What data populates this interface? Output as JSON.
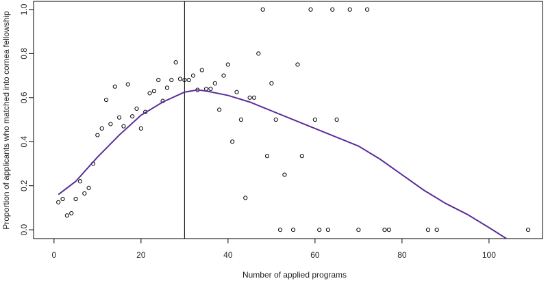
{
  "chart_data": {
    "type": "scatter",
    "xlabel": "Number of applied programs",
    "ylabel": "Proportion of applicants who matched into cornea fellowship",
    "xlim": [
      -4.7,
      112.3
    ],
    "ylim": [
      -0.04,
      1.037
    ],
    "xticks": [
      0,
      20,
      40,
      60,
      80,
      100
    ],
    "yticks": [
      {
        "value": 0,
        "label": "0.0"
      },
      {
        "value": 0.2,
        "label": "0.2"
      },
      {
        "value": 0.4,
        "label": "0.4"
      },
      {
        "value": 0.6,
        "label": "0.6"
      },
      {
        "value": 0.8,
        "label": "0.8"
      },
      {
        "value": 1,
        "label": "1.0"
      }
    ],
    "vline": 30,
    "series": [
      {
        "kind": "points",
        "color": "#000000",
        "x": [
          1,
          2,
          3,
          4,
          5,
          6,
          7,
          8,
          9,
          10,
          11,
          12,
          13,
          14,
          15,
          16,
          17,
          18,
          19,
          20,
          21,
          22,
          23,
          24,
          25,
          26,
          27,
          28,
          29,
          30,
          31,
          32,
          33,
          34,
          35,
          36,
          37,
          38,
          39,
          40,
          41,
          42,
          43,
          44,
          45,
          46,
          47,
          48,
          49,
          50,
          51,
          52,
          53,
          55,
          56,
          57,
          59,
          60,
          61,
          63,
          64,
          65,
          68,
          70,
          72,
          76,
          77,
          86,
          88,
          109
        ],
        "values": [
          0.125,
          0.14,
          0.065,
          0.075,
          0.14,
          0.22,
          0.165,
          0.19,
          0.3,
          0.43,
          0.46,
          0.59,
          0.48,
          0.65,
          0.51,
          0.47,
          0.66,
          0.515,
          0.55,
          0.46,
          0.535,
          0.62,
          0.63,
          0.68,
          0.585,
          0.645,
          0.68,
          0.76,
          0.685,
          0.68,
          0.68,
          0.7,
          0.635,
          0.725,
          0.64,
          0.64,
          0.665,
          0.545,
          0.7,
          0.75,
          0.4,
          0.625,
          0.5,
          0.145,
          0.6,
          0.6,
          0.8,
          1,
          0.335,
          0.665,
          0.5,
          0,
          0.25,
          0,
          0.75,
          0.335,
          1,
          0.5,
          0,
          0,
          1,
          0.5,
          1,
          0,
          1,
          0,
          0,
          0,
          0,
          0
        ]
      },
      {
        "kind": "line",
        "color": "#5b2c9a",
        "x": [
          1,
          5,
          10,
          15,
          20,
          25,
          30,
          33,
          35,
          40,
          45,
          50,
          55,
          60,
          65,
          70,
          75,
          80,
          85,
          90,
          95,
          100,
          104
        ],
        "values": [
          0.16,
          0.22,
          0.33,
          0.43,
          0.52,
          0.58,
          0.625,
          0.635,
          0.63,
          0.61,
          0.58,
          0.54,
          0.5,
          0.46,
          0.42,
          0.38,
          0.32,
          0.25,
          0.18,
          0.12,
          0.07,
          0.01,
          -0.04
        ]
      }
    ]
  }
}
